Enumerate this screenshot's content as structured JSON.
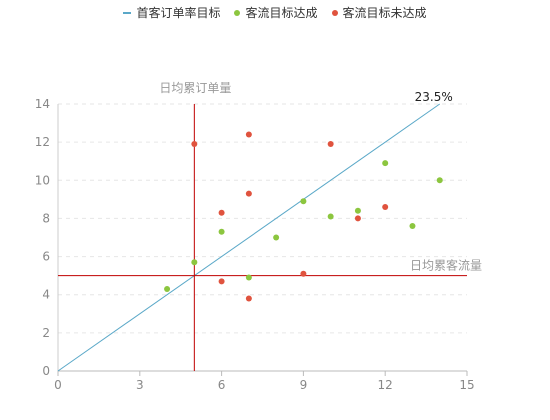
{
  "chart_data": {
    "type": "scatter",
    "legend": [
      {
        "label": "首客订单率目标",
        "color": "#5aa8c8",
        "kind": "line"
      },
      {
        "label": "客流目标达成",
        "color": "#8cc63f",
        "kind": "dot"
      },
      {
        "label": "客流目标未达成",
        "color": "#e0533e",
        "kind": "dot"
      }
    ],
    "xlim": [
      0,
      15
    ],
    "ylim": [
      0,
      14
    ],
    "xticks": [
      0,
      3,
      6,
      9,
      12,
      15
    ],
    "yticks": [
      0,
      2,
      4,
      6,
      8,
      10,
      12,
      14
    ],
    "grid": true,
    "reference_lines": {
      "vertical": {
        "x": 5,
        "label": "日均累订单量",
        "color": "#c00000"
      },
      "horizontal": {
        "y": 5,
        "label": "日均累客流量",
        "color": "#c00000"
      }
    },
    "target_line": {
      "from": [
        0,
        0
      ],
      "to": [
        14,
        14
      ],
      "label": "23.5%",
      "color": "#5aa8c8"
    },
    "series": [
      {
        "name": "客流目标达成",
        "color": "#8cc63f",
        "points": [
          [
            4,
            4.3
          ],
          [
            5,
            5.7
          ],
          [
            6,
            7.3
          ],
          [
            7,
            4.9
          ],
          [
            8,
            7.0
          ],
          [
            9,
            8.9
          ],
          [
            10,
            8.1
          ],
          [
            11,
            8.4
          ],
          [
            12,
            10.9
          ],
          [
            13,
            7.6
          ],
          [
            14,
            10.0
          ]
        ]
      },
      {
        "name": "客流目标未达成",
        "color": "#e0533e",
        "points": [
          [
            5,
            11.9
          ],
          [
            6,
            8.3
          ],
          [
            6,
            4.7
          ],
          [
            7,
            12.4
          ],
          [
            7,
            9.3
          ],
          [
            7,
            3.8
          ],
          [
            9,
            5.1
          ],
          [
            10,
            11.9
          ],
          [
            11,
            8.0
          ],
          [
            12,
            8.6
          ]
        ]
      }
    ]
  }
}
